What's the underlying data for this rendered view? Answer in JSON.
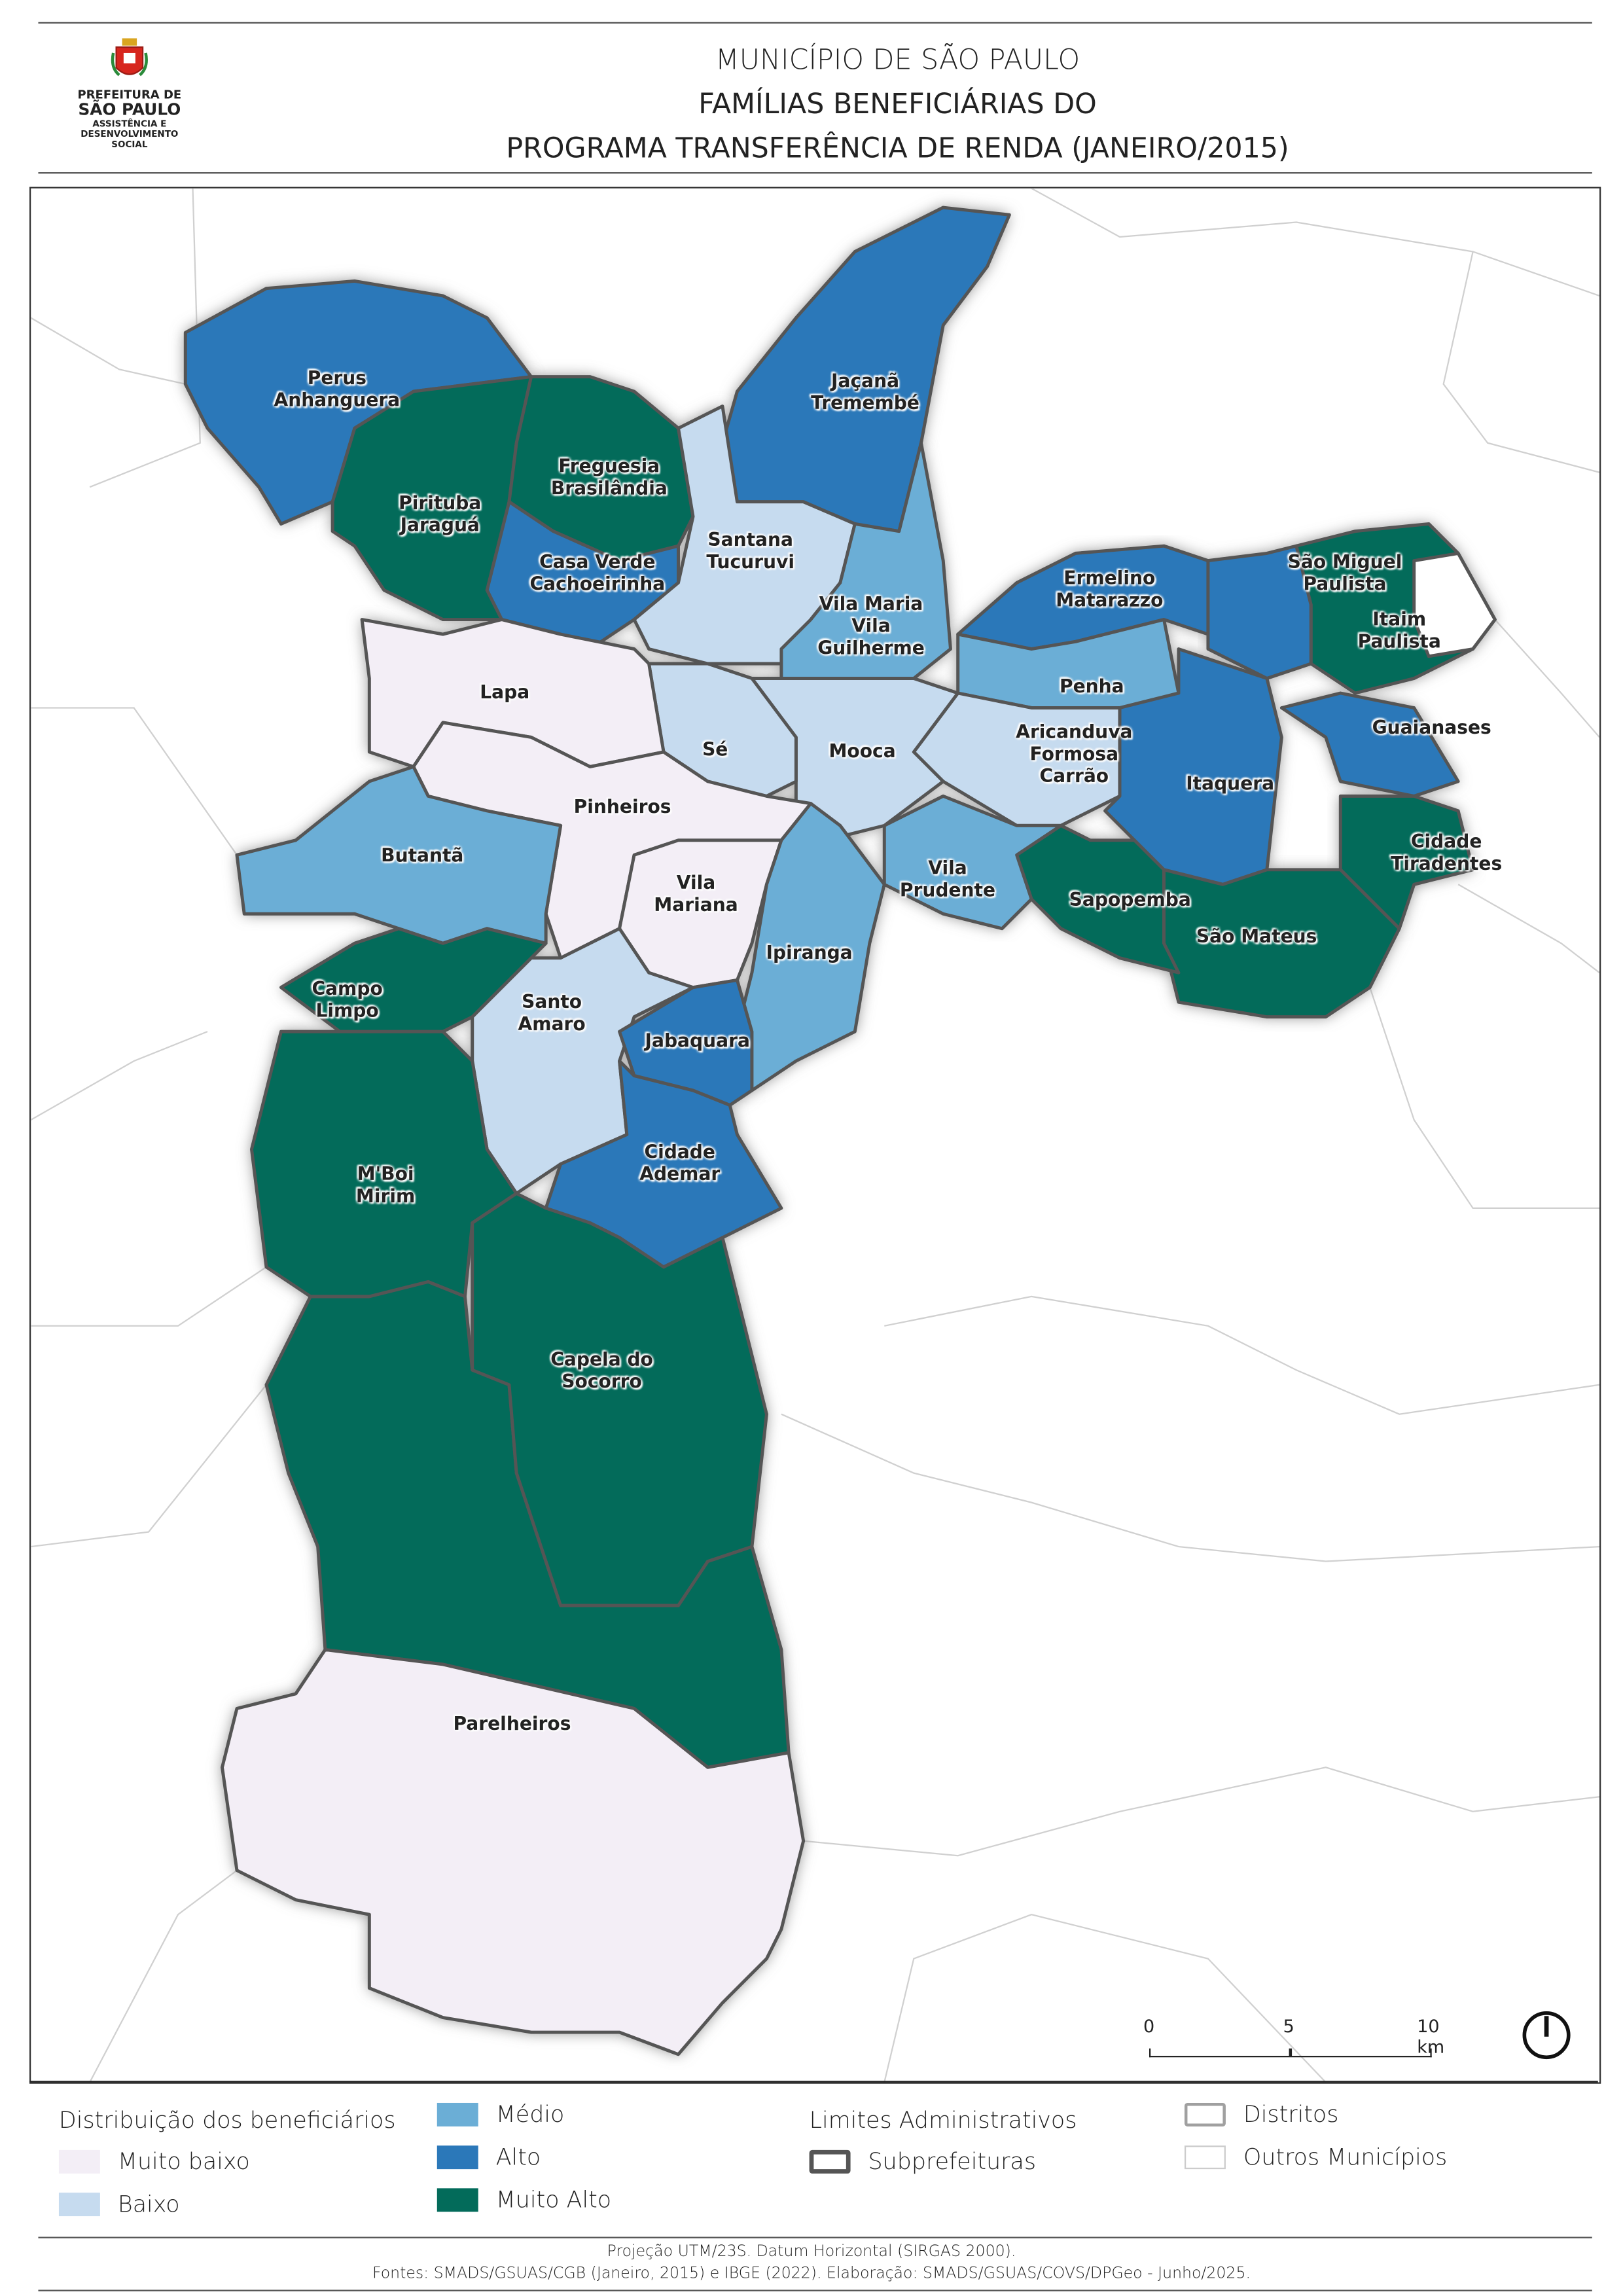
{
  "header": {
    "logo": {
      "line1": "PREFEITURA DE",
      "line2": "SÃO PAULO",
      "line3": "ASSISTÊNCIA E",
      "line4": "DESENVOLVIMENTO",
      "line5": "SOCIAL"
    },
    "title_line1": "MUNICÍPIO DE SÃO PAULO",
    "title_line2": "FAMÍLIAS BENEFICIÁRIAS DO",
    "title_line3": "PROGRAMA TRANSFERÊNCIA DE RENDA (JANEIRO/2015)"
  },
  "colors": {
    "muito_baixo": "#f3eef6",
    "baixo": "#c6dbef",
    "medio": "#6baed6",
    "alto": "#2b78b9",
    "muito_alto": "#036b5a",
    "subprefeitura_border": "#555555",
    "distrito_border": "#a0a0a0",
    "outros_municipios_border": "#cccccc"
  },
  "map": {
    "regions": [
      {
        "name": "Perus\nAnhanguera",
        "class": "alto"
      },
      {
        "name": "Pirituba\nJaraguá",
        "class": "muito_alto"
      },
      {
        "name": "Freguesia\nBrasilândia",
        "class": "muito_alto"
      },
      {
        "name": "Casa Verde\nCachoeirinha",
        "class": "alto"
      },
      {
        "name": "Jaçanã\nTremembé",
        "class": "alto"
      },
      {
        "name": "Santana\nTucuruvi",
        "class": "baixo"
      },
      {
        "name": "Vila Maria\nVila\nGuilherme",
        "class": "medio"
      },
      {
        "name": "Ermelino\nMatarazzo",
        "class": "alto"
      },
      {
        "name": "São Miguel\nPaulista",
        "class": "alto"
      },
      {
        "name": "Itaim\nPaulista",
        "class": "muito_alto"
      },
      {
        "name": "Penha",
        "class": "medio"
      },
      {
        "name": "Aricanduva\nFormosa\nCarrão",
        "class": "baixo"
      },
      {
        "name": "Itaquera",
        "class": "alto"
      },
      {
        "name": "Guaianases",
        "class": "alto"
      },
      {
        "name": "Cidade\nTiradentes",
        "class": "muito_alto"
      },
      {
        "name": "São Mateus",
        "class": "muito_alto"
      },
      {
        "name": "Sapopemba",
        "class": "muito_alto"
      },
      {
        "name": "Vila\nPrudente",
        "class": "medio"
      },
      {
        "name": "Mooca",
        "class": "baixo"
      },
      {
        "name": "Sé",
        "class": "baixo"
      },
      {
        "name": "Lapa",
        "class": "muito_baixo"
      },
      {
        "name": "Pinheiros",
        "class": "muito_baixo"
      },
      {
        "name": "Butantã",
        "class": "medio"
      },
      {
        "name": "Vila\nMariana",
        "class": "muito_baixo"
      },
      {
        "name": "Ipiranga",
        "class": "medio"
      },
      {
        "name": "Santo\nAmaro",
        "class": "baixo"
      },
      {
        "name": "Jabaquara",
        "class": "alto"
      },
      {
        "name": "Cidade\nAdemar",
        "class": "alto"
      },
      {
        "name": "Campo\nLimpo",
        "class": "muito_alto"
      },
      {
        "name": "M'Boi\nMirim",
        "class": "muito_alto"
      },
      {
        "name": "Capela do\nSocorro",
        "class": "muito_alto"
      },
      {
        "name": "Parelheiros",
        "class": "muito_baixo"
      }
    ],
    "scale_bar": {
      "ticks": [
        "0",
        "5",
        "10 km"
      ]
    },
    "north_arrow": "north-arrow-icon"
  },
  "legend": {
    "distribution_title": "Distribuição dos beneficiários",
    "muito_baixo": "Muito baixo",
    "baixo": "Baixo",
    "medio": "Médio",
    "alto": "Alto",
    "muito_alto": "Muito Alto",
    "limits_title": "Limites Administrativos",
    "subprefeituras": "Subprefeituras",
    "distritos": "Distritos",
    "outros_municipios": "Outros Municípios"
  },
  "footer": {
    "line1": "Projeção UTM/23S. Datum Horizontal (SIRGAS 2000).",
    "line2": "Fontes: SMADS/GSUAS/CGB (Janeiro, 2015) e IBGE (2022). Elaboração: SMADS/GSUAS/COVS/DPGeo - Junho/2025."
  }
}
